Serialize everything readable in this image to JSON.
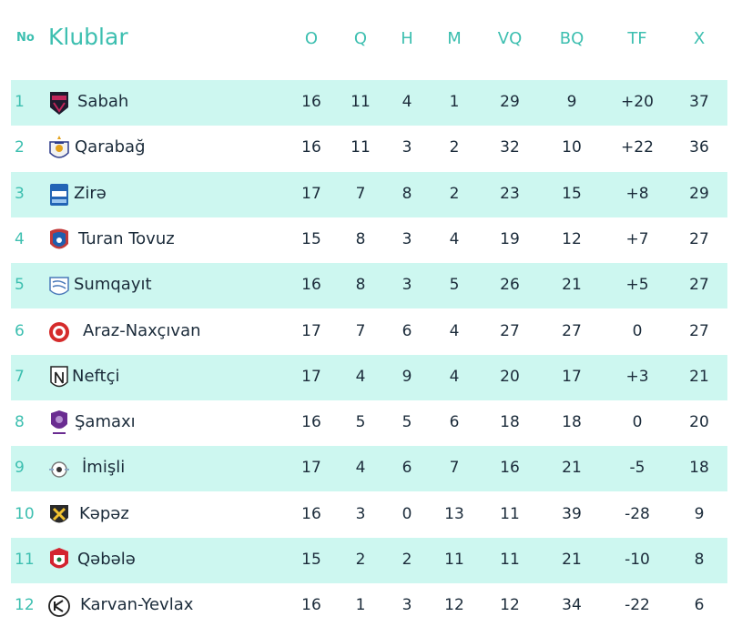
{
  "header": {
    "no": "No",
    "club": "Klublar",
    "cols": [
      "O",
      "Q",
      "H",
      "M",
      "VQ",
      "BQ",
      "TF",
      "X"
    ]
  },
  "rows": [
    {
      "pos": "1",
      "club": "Sabah",
      "stats": [
        "16",
        "11",
        "4",
        "1",
        "29",
        "9",
        "+20",
        "37"
      ],
      "logo": "sabah-logo"
    },
    {
      "pos": "2",
      "club": "Qarabağ",
      "stats": [
        "16",
        "11",
        "3",
        "2",
        "32",
        "10",
        "+22",
        "36"
      ],
      "logo": "qarabag-logo"
    },
    {
      "pos": "3",
      "club": "Zirə",
      "stats": [
        "17",
        "7",
        "8",
        "2",
        "23",
        "15",
        "+8",
        "29"
      ],
      "logo": "zire-logo"
    },
    {
      "pos": "4",
      "club": "Turan Tovuz",
      "stats": [
        "15",
        "8",
        "3",
        "4",
        "19",
        "12",
        "+7",
        "27"
      ],
      "logo": "turan-tovuz-logo"
    },
    {
      "pos": "5",
      "club": "Sumqayıt",
      "stats": [
        "16",
        "8",
        "3",
        "5",
        "26",
        "21",
        "+5",
        "27"
      ],
      "logo": "sumqayit-logo"
    },
    {
      "pos": "6",
      "club": "Araz-Naxçıvan",
      "stats": [
        "17",
        "7",
        "6",
        "4",
        "27",
        "27",
        "0",
        "27"
      ],
      "logo": "araz-naxcivan-logo"
    },
    {
      "pos": "7",
      "club": "Neftçi",
      "stats": [
        "17",
        "4",
        "9",
        "4",
        "20",
        "17",
        "+3",
        "21"
      ],
      "logo": "neftci-logo"
    },
    {
      "pos": "8",
      "club": "Şamaxı",
      "stats": [
        "16",
        "5",
        "5",
        "6",
        "18",
        "18",
        "0",
        "20"
      ],
      "logo": "samaxi-logo"
    },
    {
      "pos": "9",
      "club": "İmişli",
      "stats": [
        "17",
        "4",
        "6",
        "7",
        "16",
        "21",
        "-5",
        "18"
      ],
      "logo": "imisli-logo"
    },
    {
      "pos": "10",
      "club": "Kəpəz",
      "stats": [
        "16",
        "3",
        "0",
        "13",
        "11",
        "39",
        "-28",
        "9"
      ],
      "logo": "kepez-logo"
    },
    {
      "pos": "11",
      "club": "Qəbələ",
      "stats": [
        "15",
        "2",
        "2",
        "11",
        "11",
        "21",
        "-10",
        "8"
      ],
      "logo": "qebele-logo"
    },
    {
      "pos": "12",
      "club": "Karvan-Yevlax",
      "stats": [
        "16",
        "1",
        "3",
        "12",
        "12",
        "34",
        "-22",
        "6"
      ],
      "logo": "karvan-yevlax-logo"
    }
  ],
  "colors": {
    "accent": "#3dbfb0",
    "band": "#cdf7f0",
    "text": "#1b2b3a"
  }
}
